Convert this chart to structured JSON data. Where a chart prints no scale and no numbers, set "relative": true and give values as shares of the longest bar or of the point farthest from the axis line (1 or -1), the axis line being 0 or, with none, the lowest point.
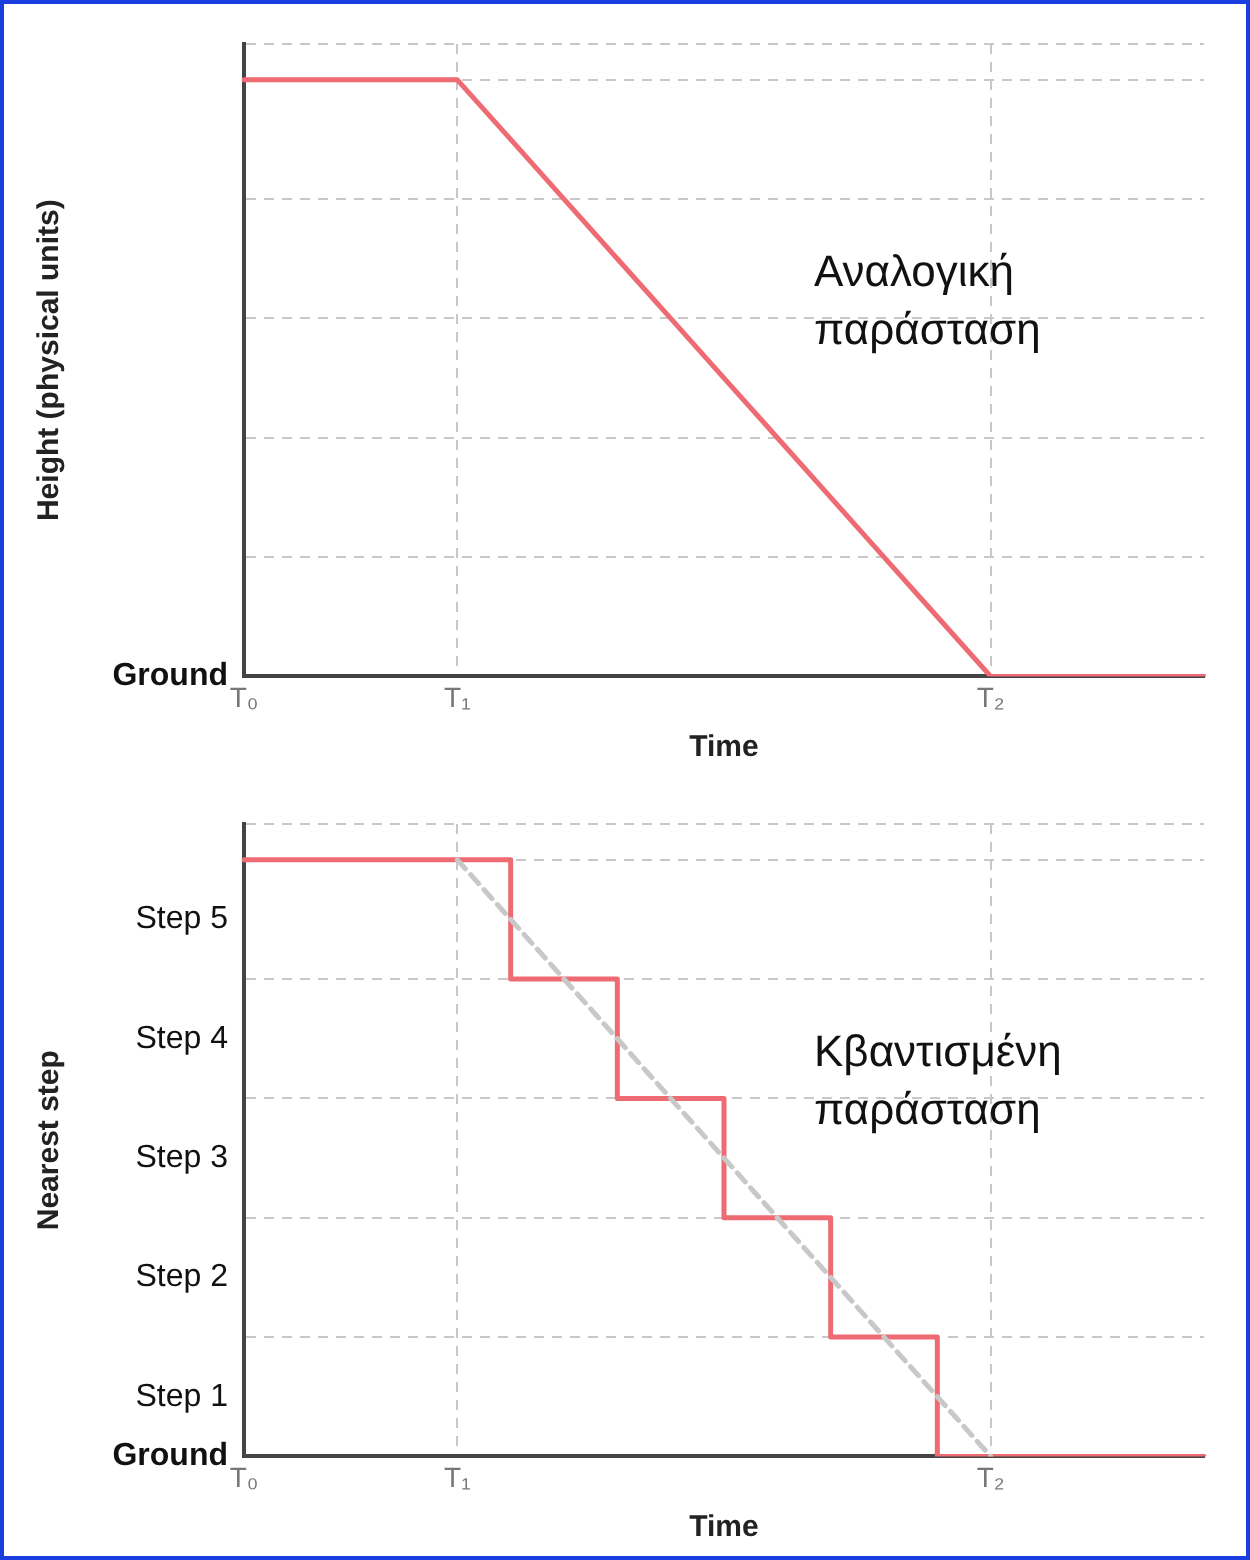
{
  "chart_data": [
    {
      "type": "line",
      "relative": true,
      "xlabel": "Time",
      "ylabel": "Height (physical units)",
      "annotations": [
        "Αναλογική παράσταση",
        "Ground"
      ],
      "categories": [
        "T₀",
        null,
        null,
        null,
        "T₁",
        null,
        null,
        null,
        null,
        null,
        null,
        null,
        null,
        null,
        "T₂",
        null,
        null,
        null,
        null
      ],
      "series": [
        {
          "values": [
            1,
            1,
            1,
            1,
            1,
            0.9,
            0.8,
            0.7,
            0.6,
            0.5,
            0.4,
            0.3,
            0.2,
            0.1,
            0,
            0,
            0,
            0,
            0
          ],
          "color": "#ee6b73"
        }
      ],
      "grid": true,
      "legend": false,
      "marker": "none"
    },
    {
      "type": "step",
      "relative": true,
      "xlabel": "Time",
      "ylabel": "Nearest step",
      "annotations": [
        "Κβαντισμένη παράσταση",
        "Ground",
        "Step 1",
        "Step 2",
        "Step 3",
        "Step 4",
        "Step 5"
      ],
      "categories": [
        "T₀",
        null,
        null,
        null,
        "T₁",
        null,
        null,
        null,
        null,
        null,
        null,
        null,
        null,
        null,
        "T₂",
        null,
        null,
        null,
        null
      ],
      "series": [
        {
          "type": "line",
          "values": [
            null,
            null,
            null,
            null,
            1,
            0.9,
            0.8,
            0.7,
            0.6,
            0.5,
            0.4,
            0.3,
            0.2,
            0.1,
            0,
            null,
            null,
            null,
            null
          ],
          "color": "#c8c8c8",
          "line_style": "dashed"
        },
        {
          "values": [
            1,
            1,
            1,
            1,
            1,
            0.8,
            0.8,
            0.6,
            0.6,
            0.4,
            0.4,
            0.2,
            0.2,
            0,
            0,
            0,
            0,
            0,
            0
          ],
          "color": "#ee6b73"
        }
      ],
      "grid": true,
      "legend": false,
      "marker": "none"
    }
  ]
}
